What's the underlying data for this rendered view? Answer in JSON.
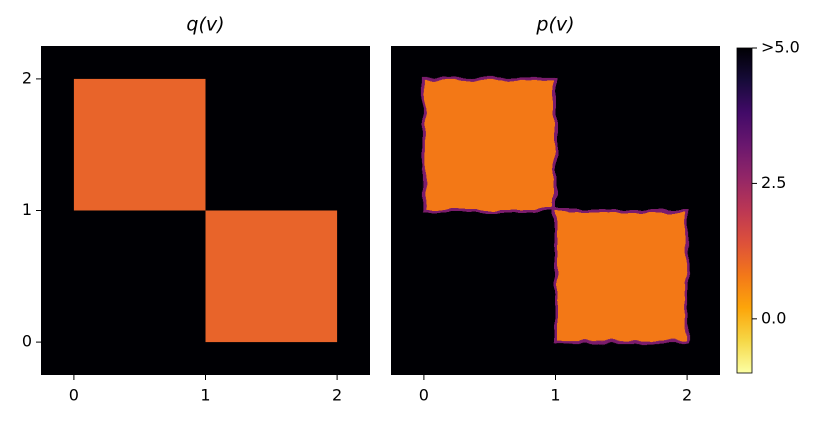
{
  "chart_data": [
    {
      "type": "heatmap",
      "title": "q(v)",
      "xlim": [
        -0.25,
        2.25
      ],
      "ylim": [
        -0.25,
        2.25
      ],
      "xticks": [
        0,
        1,
        2
      ],
      "yticks": [
        0,
        1,
        2
      ],
      "background": 5,
      "regions": [
        {
          "x": [
            0,
            1
          ],
          "y": [
            1,
            2
          ],
          "value": 1.1
        },
        {
          "x": [
            1,
            2
          ],
          "y": [
            0,
            1
          ],
          "value": 1.1
        }
      ]
    },
    {
      "type": "heatmap",
      "title": "p(v)",
      "xlim": [
        -0.25,
        2.25
      ],
      "ylim": [
        -0.25,
        2.25
      ],
      "xticks": [
        0,
        1,
        2
      ],
      "background": 5,
      "ragged": true,
      "regions": [
        {
          "x": [
            0,
            1
          ],
          "y": [
            1,
            2
          ],
          "value": 0.8
        },
        {
          "x": [
            1,
            2
          ],
          "y": [
            0,
            1
          ],
          "value": 0.8
        }
      ]
    },
    {
      "type": "colorbar",
      "lim": [
        -1,
        5
      ],
      "ticks": [
        {
          "value": 0,
          "label": "0.0"
        },
        2.5,
        {
          "value": 5,
          "label": ">5.0"
        }
      ]
    }
  ]
}
